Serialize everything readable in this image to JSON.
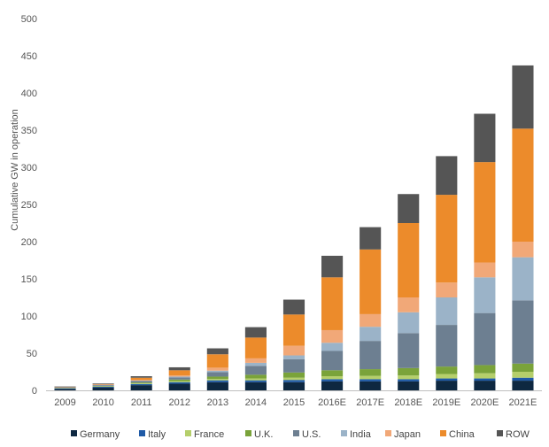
{
  "chart_data": {
    "type": "bar",
    "stacked": true,
    "title": "",
    "xlabel": "",
    "ylabel": "Cumulative  GW in operation",
    "ylim": [
      0,
      500
    ],
    "yticks": [
      0,
      50,
      100,
      150,
      200,
      250,
      300,
      350,
      400,
      450,
      500
    ],
    "grid": false,
    "legend_position": "bottom",
    "categories": [
      "2009",
      "2010",
      "2011",
      "2012",
      "2013",
      "2014",
      "2015",
      "2016E",
      "2017E",
      "2018E",
      "2019E",
      "2020E",
      "2021E"
    ],
    "series": [
      {
        "name": "Germany",
        "color": "#0e2841",
        "values": [
          2,
          4,
          7,
          9,
          11,
          11,
          11,
          12,
          12,
          12,
          13,
          13,
          13
        ]
      },
      {
        "name": "Italy",
        "color": "#1f5aa6",
        "values": [
          0.5,
          1,
          1.5,
          2,
          2.5,
          2.5,
          3,
          3,
          3,
          3,
          3,
          3,
          4
        ]
      },
      {
        "name": "France",
        "color": "#b5cf6b",
        "values": [
          0.3,
          0.5,
          1,
          1.5,
          2,
          2.5,
          3,
          4,
          4.5,
          5,
          6,
          7,
          8
        ]
      },
      {
        "name": "U.K.",
        "color": "#7aa33a",
        "values": [
          0.2,
          0.5,
          1,
          2,
          3,
          5,
          7,
          8,
          9,
          10,
          10,
          11,
          11
        ]
      },
      {
        "name": "U.S.",
        "color": "#6d7f91",
        "values": [
          0.5,
          1,
          2,
          3,
          6,
          12,
          18,
          26,
          38,
          47,
          56,
          70,
          85
        ]
      },
      {
        "name": "India",
        "color": "#9bb3c8",
        "values": [
          0.2,
          0.2,
          0.5,
          1,
          2,
          4,
          5,
          11,
          19,
          28,
          37,
          48,
          58
        ]
      },
      {
        "name": "Japan",
        "color": "#f1a878",
        "values": [
          0.3,
          0.5,
          1,
          1.5,
          4,
          6,
          13,
          17,
          17,
          20,
          20,
          20,
          21
        ]
      },
      {
        "name": "China",
        "color": "#ec8b2b",
        "values": [
          0.2,
          0.5,
          3,
          7,
          18,
          28,
          42,
          71,
          87,
          100,
          118,
          135,
          152
        ]
      },
      {
        "name": "ROW",
        "color": "#555555",
        "values": [
          1,
          1,
          2,
          4,
          8,
          14,
          20,
          29,
          30,
          39,
          52,
          65,
          85
        ]
      }
    ]
  }
}
